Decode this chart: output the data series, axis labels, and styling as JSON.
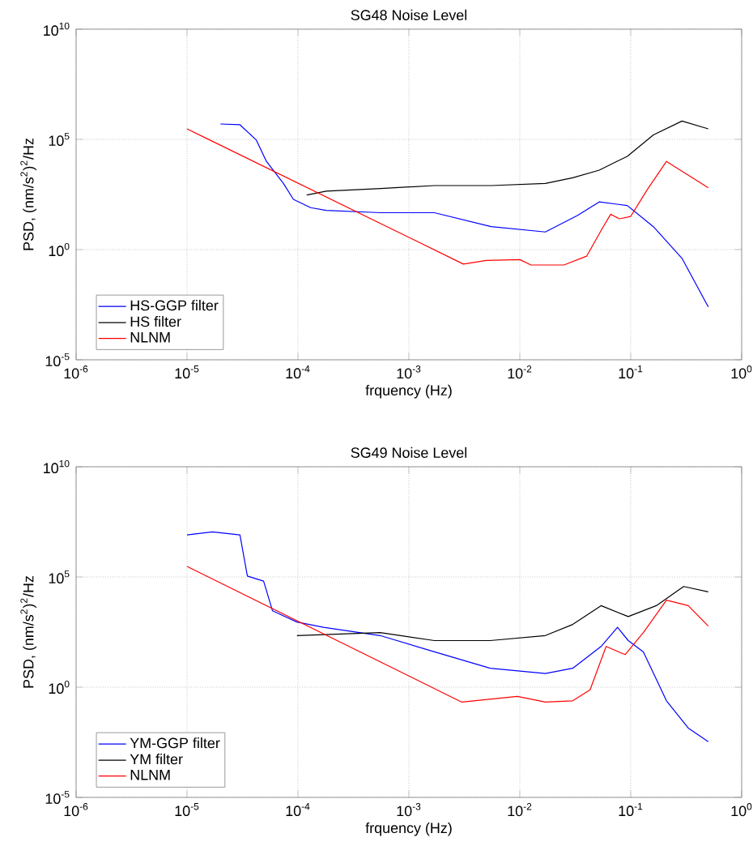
{
  "chart_data": [
    {
      "type": "line",
      "title": "SG48 Noise Level",
      "xlabel": "frquency (Hz)",
      "ylabel": "PSD, (nm/s$^{2}$)$^{2}$/Hz",
      "log": "xy",
      "grid": true,
      "legend": "bottom left",
      "line_style": "solid",
      "marker": "none",
      "xlim": [
        1e-06,
        1
      ],
      "ylim": [
        1e-05,
        10000000000.0
      ],
      "xticks": [
        {
          "value": 1e-06,
          "label": "10$^{-6}$"
        },
        {
          "value": 1e-05,
          "label": "10$^{-5}$"
        },
        {
          "value": 0.0001,
          "label": "10$^{-4}$"
        },
        {
          "value": 0.001,
          "label": "10$^{-3}$"
        },
        {
          "value": 0.01,
          "label": "10$^{-2}$"
        },
        {
          "value": 0.1,
          "label": "10$^{-1}$"
        },
        {
          "value": 1,
          "label": "10$^{0}$"
        }
      ],
      "yticks": [
        {
          "value": 1e-05,
          "label": "10$^{-5}$"
        },
        {
          "value": 1,
          "label": "10$^{0}$"
        },
        {
          "value": 100000.0,
          "label": "10$^{5}$"
        },
        {
          "value": 10000000000.0,
          "label": "10$^{10}$"
        }
      ],
      "series": [
        {
          "name": "HS-GGP filter",
          "color": "#0000ff",
          "x": [
            2e-05,
            3e-05,
            4.2e-05,
            5.2e-05,
            7.4e-05,
            9.1e-05,
            0.00013,
            0.00018,
            0.00056,
            0.0017,
            0.0055,
            0.017,
            0.033,
            0.052,
            0.093,
            0.16,
            0.29,
            0.5
          ],
          "values": [
            500000.0,
            460000.0,
            95000.0,
            10000.0,
            1000,
            190,
            80,
            60,
            47,
            47,
            11,
            6.3,
            35,
            145,
            100,
            11,
            0.4,
            0.0025
          ]
        },
        {
          "name": "HS filter",
          "color": "#000000",
          "x": [
            0.00012,
            0.00018,
            0.00056,
            0.0017,
            0.0055,
            0.017,
            0.03,
            0.052,
            0.093,
            0.16,
            0.29,
            0.5
          ],
          "values": [
            300,
            450,
            590,
            800,
            800,
            1000,
            1800,
            4000,
            17000,
            160000.0,
            680000.0,
            300000.0
          ]
        },
        {
          "name": "NLNM",
          "color": "#ff0000",
          "x": [
            1e-05,
            0.0031,
            0.005,
            0.01,
            0.0126,
            0.025,
            0.04,
            0.056,
            0.066,
            0.079,
            0.1,
            0.14,
            0.21,
            0.28,
            0.5
          ],
          "values": [
            300000.0,
            0.22,
            0.32,
            0.35,
            0.2,
            0.2,
            0.5,
            10,
            40,
            25,
            32,
            500,
            10000.0,
            4000,
            630
          ]
        }
      ]
    },
    {
      "type": "line",
      "title": "SG49 Noise Level",
      "xlabel": "frquency (Hz)",
      "ylabel": "PSD, (nm/s$^{2}$)$^{2}$/Hz",
      "log": "xy",
      "grid": true,
      "legend": "bottom left",
      "line_style": "solid",
      "marker": "none",
      "xlim": [
        1e-06,
        1
      ],
      "ylim": [
        1e-05,
        10000000000.0
      ],
      "xticks": [
        {
          "value": 1e-06,
          "label": "10$^{-6}$"
        },
        {
          "value": 1e-05,
          "label": "10$^{-5}$"
        },
        {
          "value": 0.0001,
          "label": "10$^{-4}$"
        },
        {
          "value": 0.001,
          "label": "10$^{-3}$"
        },
        {
          "value": 0.01,
          "label": "10$^{-2}$"
        },
        {
          "value": 0.1,
          "label": "10$^{-1}$"
        },
        {
          "value": 1,
          "label": "10$^{0}$"
        }
      ],
      "yticks": [
        {
          "value": 1e-05,
          "label": "10$^{-5}$"
        },
        {
          "value": 1,
          "label": "10$^{0}$"
        },
        {
          "value": 100000.0,
          "label": "10$^{5}$"
        },
        {
          "value": 10000000000.0,
          "label": "10$^{10}$"
        }
      ],
      "series": [
        {
          "name": "YM-GGP filter",
          "color": "#0000ff",
          "x": [
            1e-05,
            1.7e-05,
            3e-05,
            3.5e-05,
            4.9e-05,
            5.9e-05,
            9.8e-05,
            0.00017,
            0.00055,
            0.0017,
            0.0054,
            0.017,
            0.03,
            0.054,
            0.076,
            0.095,
            0.13,
            0.21,
            0.33,
            0.5
          ],
          "values": [
            8100000.0,
            11000000.0,
            8100000.0,
            110000.0,
            65000.0,
            2900,
            900,
            520,
            220,
            40,
            7.2,
            4.2,
            7.2,
            70,
            520,
            130,
            40,
            0.24,
            0.014,
            0.0034
          ]
        },
        {
          "name": "YM filter",
          "color": "#000000",
          "x": [
            9.8e-05,
            0.00055,
            0.0017,
            0.0054,
            0.017,
            0.03,
            0.054,
            0.095,
            0.17,
            0.3,
            0.5
          ],
          "values": [
            220,
            300,
            130,
            130,
            220,
            700,
            5000,
            1600,
            5000,
            37000.0,
            21000.0
          ]
        },
        {
          "name": "NLNM",
          "color": "#ff0000",
          "x": [
            1e-05,
            0.003,
            0.0095,
            0.017,
            0.03,
            0.043,
            0.06,
            0.089,
            0.13,
            0.21,
            0.33,
            0.5
          ],
          "values": [
            300000.0,
            0.21,
            0.38,
            0.21,
            0.24,
            0.76,
            70,
            30,
            300,
            8900,
            5000,
            590
          ]
        }
      ]
    }
  ]
}
